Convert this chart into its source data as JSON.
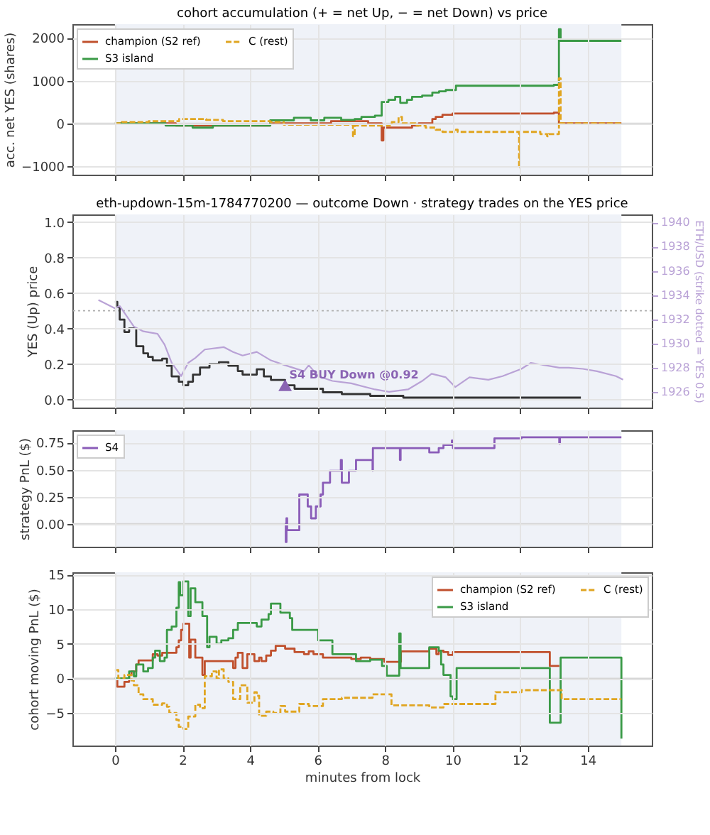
{
  "chart_data": [
    {
      "type": "step",
      "title": "cohort accumulation (+ = net Up, − = net Down) vs price",
      "ylabel": "acc. net YES (shares)",
      "xlim": [
        -1.26,
        15.9
      ],
      "xticks": [
        0,
        2,
        4,
        6,
        8,
        10,
        12,
        14
      ],
      "ylim": [
        -1200,
        2320
      ],
      "yticks": [
        -1000,
        0,
        1000,
        2000
      ],
      "tick_labels": "y",
      "grid": true,
      "legend": "top left",
      "bands": [
        {
          "axis": "x",
          "from": 0,
          "to": 15,
          "color": "#eff2f8"
        }
      ],
      "ref_lines": [
        {
          "axis": "y",
          "value": 0,
          "color": "#d6d6d6"
        }
      ],
      "series": [
        {
          "name": "champion (S2 ref)",
          "color": "#c0502d",
          "line_style": "solid",
          "x": [
            0,
            1.8,
            4.6,
            6.4,
            7.5,
            7.9,
            7.95,
            8.8,
            9.0,
            9.4,
            9.5,
            9.7,
            10.0,
            13.0,
            13.15,
            15.0
          ],
          "values": [
            0,
            -50,
            0,
            50,
            0,
            -400,
            -100,
            -50,
            0,
            100,
            150,
            200,
            230,
            250,
            0,
            0
          ]
        },
        {
          "name": "S3 island",
          "color": "#3a9a46",
          "line_style": "solid",
          "x": [
            0,
            1.5,
            2.3,
            2.9,
            4.6,
            5.3,
            5.8,
            6.2,
            6.7,
            7.1,
            7.3,
            7.7,
            7.9,
            8.1,
            8.3,
            8.45,
            8.65,
            8.8,
            9.1,
            9.4,
            9.6,
            9.8,
            10.1,
            13.0,
            13.15,
            13.2,
            15.0
          ],
          "values": [
            0,
            -50,
            -100,
            -50,
            70,
            130,
            70,
            130,
            80,
            100,
            150,
            180,
            500,
            550,
            620,
            480,
            550,
            620,
            650,
            720,
            750,
            780,
            880,
            900,
            2200,
            1930,
            1930
          ]
        },
        {
          "name": "C (rest)",
          "color": "#e0a521",
          "line_style": "dashed",
          "x": [
            0,
            0.2,
            1.0,
            1.9,
            2.7,
            3.2,
            4.6,
            5.0,
            7.05,
            7.1,
            8.2,
            8.4,
            8.5,
            8.9,
            9.2,
            9.5,
            9.7,
            10.1,
            10.15,
            11.97,
            12.0,
            12.6,
            12.8,
            12.85,
            13.15,
            13.2,
            15.0
          ],
          "values": [
            0,
            30,
            50,
            100,
            80,
            50,
            30,
            -30,
            -300,
            -50,
            30,
            150,
            0,
            -50,
            -100,
            -150,
            -200,
            -150,
            -200,
            -1050,
            -200,
            -250,
            -300,
            -250,
            1050,
            0,
            0
          ]
        }
      ]
    },
    {
      "type": "step",
      "title": "eth-updown-15m-1784770200 — outcome Down · strategy trades on the YES price",
      "ylabel": "YES (Up) price",
      "y2label": "ETH/USD (strike dotted = YES 0.5)",
      "xlim": [
        -1.26,
        15.9
      ],
      "xticks": [
        0,
        2,
        4,
        6,
        8,
        10,
        12,
        14
      ],
      "ylim": [
        -0.046,
        1.043
      ],
      "yticks": [
        {
          "value": 0,
          "label": "0.0"
        },
        0.2,
        0.4,
        0.6,
        0.8,
        {
          "value": 1,
          "label": "1.0"
        }
      ],
      "y2lim": [
        1924.7,
        1940.67
      ],
      "y2ticks": [
        1926,
        1928,
        1930,
        1932,
        1934,
        1936,
        1938,
        1940
      ],
      "tick_labels": "y",
      "grid": true,
      "bands": [
        {
          "axis": "x",
          "from": 0,
          "to": 15,
          "color": "#eff2f8"
        }
      ],
      "ref_lines": [
        {
          "axis": "y",
          "value": 0.5,
          "color": "#b0b0b0",
          "line_style": "dotted"
        }
      ],
      "annotations": [
        {
          "text": "S4 BUY Down @0.92",
          "x": 5.04,
          "y": 0.08
        }
      ],
      "series": [
        {
          "color": "#333333",
          "x": [
            0,
            0.07,
            0.14,
            0.28,
            0.42,
            0.63,
            0.84,
            0.98,
            1.12,
            1.4,
            1.54,
            1.68,
            1.89,
            2.03,
            2.17,
            2.31,
            2.52,
            2.8,
            3.08,
            3.36,
            3.64,
            3.78,
            4.2,
            4.41,
            4.62,
            5.04,
            5.32,
            6.16,
            6.72,
            7.56,
            8.54,
            13.8
          ],
          "values": [
            0.55,
            0.52,
            0.45,
            0.38,
            0.4,
            0.3,
            0.26,
            0.24,
            0.22,
            0.23,
            0.19,
            0.13,
            0.1,
            0.08,
            0.1,
            0.14,
            0.18,
            0.2,
            0.21,
            0.19,
            0.16,
            0.14,
            0.17,
            0.13,
            0.11,
            0.08,
            0.06,
            0.04,
            0.03,
            0.02,
            0.01,
            0.01
          ]
        },
        {
          "type": "line",
          "axis": "y2",
          "color": "#b9a2d6",
          "x": [
            -0.49,
            0,
            0.14,
            0.56,
            0.84,
            1.26,
            1.47,
            1.68,
            1.96,
            2.17,
            2.38,
            2.66,
            3.22,
            3.5,
            3.78,
            4.2,
            4.62,
            5.04,
            5.6,
            5.74,
            6.02,
            6.44,
            7.0,
            7.7,
            8.12,
            8.68,
            9.1,
            9.38,
            9.8,
            10.08,
            10.5,
            11.06,
            11.48,
            12.04,
            12.32,
            12.74,
            13.16,
            13.44,
            13.86,
            14.28,
            14.84,
            15.05
          ],
          "values": [
            1933.6,
            1932.9,
            1933.1,
            1931.4,
            1931.0,
            1930.8,
            1929.9,
            1928.4,
            1927.3,
            1928.4,
            1928.8,
            1929.5,
            1929.7,
            1929.3,
            1929.0,
            1929.3,
            1928.6,
            1928.2,
            1927.7,
            1928.2,
            1927.3,
            1926.9,
            1926.7,
            1926.2,
            1926.0,
            1926.2,
            1926.9,
            1927.5,
            1927.2,
            1926.4,
            1927.2,
            1927.0,
            1927.3,
            1927.9,
            1928.4,
            1928.2,
            1928.0,
            1928.0,
            1927.9,
            1927.7,
            1927.3,
            1927.0
          ]
        },
        {
          "type": "scatter",
          "marker": "triangle",
          "color": "#8a63b3",
          "x": [
            5.04
          ],
          "values": [
            0.08
          ]
        }
      ]
    },
    {
      "type": "step",
      "ylabel": "strategy PnL ($)",
      "xlim": [
        -1.26,
        15.9
      ],
      "xticks": [
        0,
        2,
        4,
        6,
        8,
        10,
        12,
        14
      ],
      "ylim": [
        -0.213,
        0.865
      ],
      "yticks": [
        {
          "value": 0,
          "label": "0.00"
        },
        {
          "value": 0.25,
          "label": "0.25"
        },
        {
          "value": 0.5,
          "label": "0.50"
        },
        {
          "value": 0.75,
          "label": "0.75"
        }
      ],
      "tick_labels": "y",
      "grid": true,
      "legend": "top left",
      "bands": [
        {
          "axis": "x",
          "from": 0,
          "to": 15,
          "color": "#eff2f8"
        }
      ],
      "ref_lines": [
        {
          "axis": "y",
          "value": 0,
          "color": "#d6d6d6"
        }
      ],
      "series": [
        {
          "name": "S4",
          "color": "#8a5cb8",
          "line_style": "solid",
          "x": [
            5.04,
            5.06,
            5.08,
            5.1,
            5.46,
            5.71,
            5.81,
            5.95,
            6.09,
            6.16,
            6.37,
            6.69,
            6.72,
            6.93,
            7.14,
            7.63,
            7.64,
            8.44,
            8.46,
            9.31,
            9.59,
            9.73,
            9.98,
            10.01,
            11.24,
            12.04,
            13.16,
            13.18,
            15.0
          ],
          "values": [
            0,
            -0.17,
            0.05,
            -0.06,
            0.27,
            0.16,
            0.05,
            0.16,
            0.27,
            0.38,
            0.49,
            0.59,
            0.38,
            0.49,
            0.59,
            0.49,
            0.7,
            0.59,
            0.7,
            0.66,
            0.7,
            0.73,
            0.77,
            0.7,
            0.79,
            0.8,
            0.74,
            0.8,
            0.8
          ]
        }
      ]
    },
    {
      "type": "step",
      "xlabel": "minutes from lock",
      "ylabel": "cohort moving PnL ($)",
      "xlim": [
        -1.26,
        15.9
      ],
      "xticks": [
        0,
        2,
        4,
        6,
        8,
        10,
        12,
        14
      ],
      "ylim": [
        -9.7,
        15.33
      ],
      "yticks": [
        -5,
        0,
        5,
        10,
        15
      ],
      "grid": true,
      "legend": "top right",
      "bands": [
        {
          "axis": "x",
          "from": 0,
          "to": 15,
          "color": "#eff2f8"
        }
      ],
      "ref_lines": [
        {
          "axis": "y",
          "value": 0,
          "color": "#d6d6d6"
        }
      ],
      "series": [
        {
          "name": "champion (S2 ref)",
          "color": "#c0502d",
          "line_style": "solid",
          "x": [
            0,
            0.07,
            0.28,
            0.42,
            0.49,
            0.63,
            0.7,
            1.12,
            1.26,
            1.4,
            1.82,
            1.89,
            1.96,
            2.03,
            2.2,
            2.24,
            2.38,
            2.59,
            2.66,
            3.5,
            3.57,
            3.64,
            3.78,
            3.92,
            4.13,
            4.27,
            4.34,
            4.48,
            4.62,
            4.76,
            5.04,
            5.32,
            5.6,
            5.74,
            5.88,
            6.16,
            7.0,
            7.28,
            7.56,
            7.98,
            8.47,
            9.31,
            9.52,
            9.59,
            9.73,
            9.87,
            10.01,
            12.88,
            13.16
          ],
          "values": [
            0,
            -1.2,
            -0.5,
            0.5,
            1,
            2,
            2.6,
            3.5,
            3.3,
            3.7,
            4.5,
            5.5,
            7,
            7.9,
            3,
            5.6,
            3,
            0.5,
            2.5,
            1.5,
            3,
            3.7,
            1.5,
            3.5,
            2.5,
            3,
            2.5,
            3.3,
            4,
            4.7,
            4.3,
            3.8,
            3.5,
            3.9,
            3.5,
            3,
            2.8,
            3,
            2.8,
            2.4,
            3.9,
            4.3,
            3.5,
            4,
            3.8,
            3.4,
            3.8,
            1.8,
            1.8
          ]
        },
        {
          "name": "S3 island",
          "color": "#3a9a46",
          "line_style": "solid",
          "x": [
            0,
            0.42,
            0.56,
            0.63,
            0.84,
            0.98,
            1.12,
            1.19,
            1.33,
            1.47,
            1.54,
            1.68,
            1.82,
            1.89,
            1.93,
            2.03,
            2.17,
            2.24,
            2.38,
            2.59,
            2.73,
            2.8,
            3.01,
            3.15,
            3.36,
            3.5,
            3.64,
            4.2,
            4.34,
            4.55,
            4.62,
            4.9,
            5.18,
            5.25,
            6.02,
            6.44,
            7.14,
            7.56,
            7.91,
            8.05,
            8.42,
            8.46,
            9.31,
            9.59,
            9.66,
            9.73,
            9.94,
            10.01,
            10.12,
            12.88,
            13.2,
            15.0
          ],
          "values": [
            0,
            1,
            0.3,
            2,
            1,
            1.5,
            3,
            4,
            2.5,
            3,
            7,
            7.5,
            10.2,
            13.9,
            12,
            14,
            9,
            13,
            11,
            9,
            4.5,
            6,
            5,
            5.5,
            5.8,
            7,
            8,
            7.5,
            8.5,
            9.3,
            10.8,
            9.5,
            8.7,
            7,
            5.5,
            3.5,
            2.5,
            2.7,
            1.8,
            0.4,
            6.5,
            1.5,
            4.5,
            4,
            2,
            0.5,
            -2.6,
            -3,
            1.5,
            -6.4,
            3,
            -8.7
          ]
        },
        {
          "name": "C (rest)",
          "color": "#e0a521",
          "line_style": "dashed",
          "x": [
            0,
            0.1,
            0.28,
            0.49,
            0.56,
            0.7,
            0.84,
            1.12,
            1.4,
            1.54,
            1.61,
            1.82,
            1.89,
            2.03,
            2.17,
            2.38,
            2.52,
            2.66,
            2.87,
            3.01,
            3.08,
            3.22,
            3.36,
            3.5,
            3.71,
            3.92,
            4.13,
            4.2,
            4.27,
            4.48,
            4.69,
            4.9,
            5.04,
            5.46,
            5.74,
            6.16,
            6.72,
            7.63,
            8.19,
            9.31,
            9.73,
            11.27,
            12.04,
            13.23,
            15.0
          ],
          "values": [
            1.2,
            0,
            0.5,
            -0.3,
            -1,
            -2.3,
            -3,
            -3.8,
            -3.6,
            -4.1,
            -5,
            -6,
            -7,
            -7.3,
            -5.5,
            -3.8,
            -4.3,
            0.3,
            1,
            0,
            1.3,
            0,
            -0.5,
            -3,
            -1,
            -3.5,
            -2,
            -2.5,
            -5.4,
            -4.8,
            -5,
            -4,
            -4.8,
            -3.7,
            -4,
            -3,
            -2.8,
            -2.3,
            -3.9,
            -4.2,
            -3.7,
            -2,
            -1.7,
            -3,
            -3
          ]
        }
      ]
    }
  ]
}
